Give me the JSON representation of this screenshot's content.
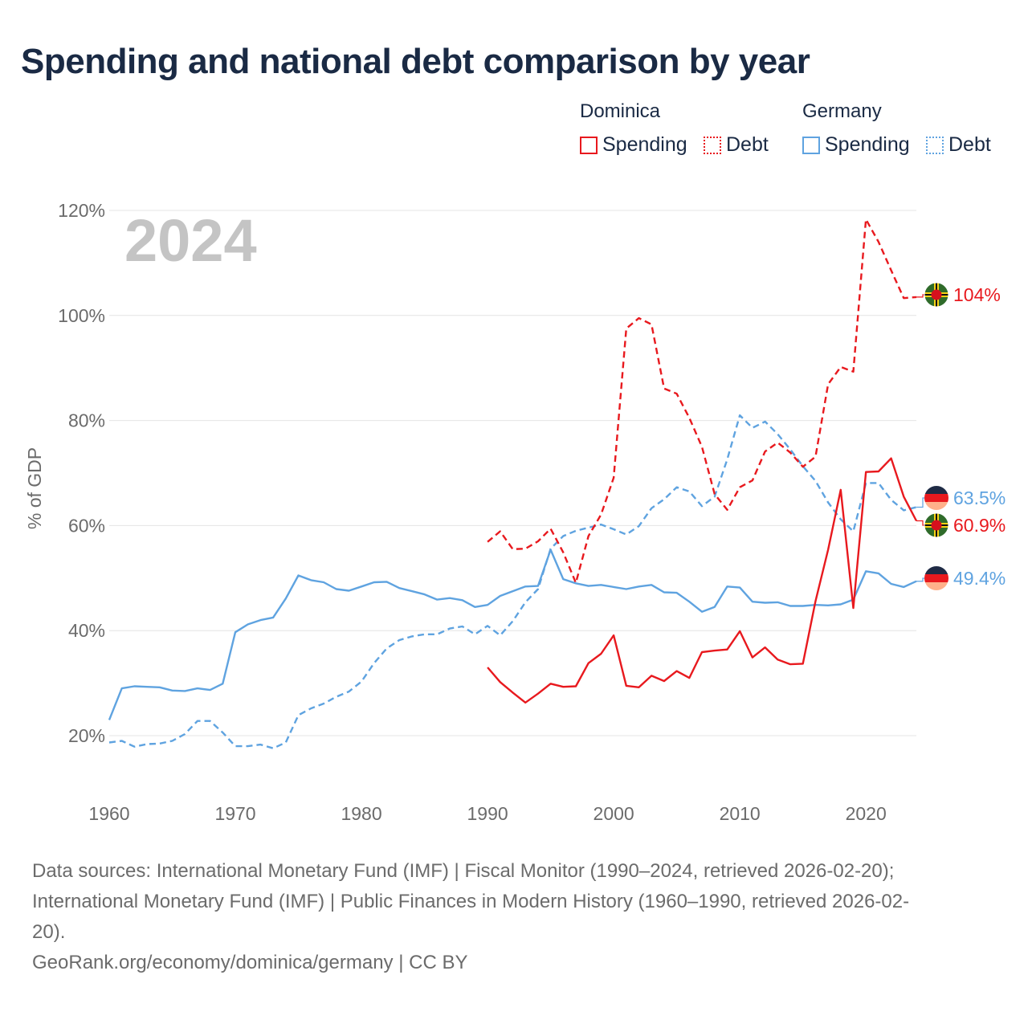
{
  "title": "Spending and national debt comparison by year",
  "legend": {
    "groups": [
      {
        "name": "Dominica",
        "color": "#e8191e",
        "items": [
          {
            "label": "Spending",
            "style": "solid"
          },
          {
            "label": "Debt",
            "style": "dotted"
          }
        ]
      },
      {
        "name": "Germany",
        "color": "#5fa3e0",
        "items": [
          {
            "label": "Spending",
            "style": "solid"
          },
          {
            "label": "Debt",
            "style": "dotted"
          }
        ]
      }
    ]
  },
  "chart_data": {
    "type": "line",
    "year_label": "2024",
    "ylabel": "% of GDP",
    "xlim": [
      1960,
      2024
    ],
    "ylim": [
      10,
      120
    ],
    "x_ticks": [
      "1960",
      "1970",
      "1980",
      "1990",
      "2000",
      "2010",
      "2020"
    ],
    "y_ticks": [
      "20%",
      "40%",
      "60%",
      "80%",
      "100%",
      "120%"
    ],
    "series": [
      {
        "name": "Germany Spending",
        "country": "Germany",
        "color": "#5fa3e0",
        "dash": false,
        "end_label": "49.4%",
        "end_value": 49.4,
        "x": [
          1960,
          1961,
          1962,
          1963,
          1964,
          1965,
          1966,
          1967,
          1968,
          1969,
          1970,
          1971,
          1972,
          1973,
          1974,
          1975,
          1976,
          1977,
          1978,
          1979,
          1980,
          1981,
          1982,
          1983,
          1984,
          1985,
          1986,
          1987,
          1988,
          1989,
          1990,
          1991,
          1992,
          1993,
          1994,
          1995,
          1996,
          1997,
          1998,
          1999,
          2000,
          2001,
          2002,
          2003,
          2004,
          2005,
          2006,
          2007,
          2008,
          2009,
          2010,
          2011,
          2012,
          2013,
          2014,
          2015,
          2016,
          2017,
          2018,
          2019,
          2020,
          2021,
          2022,
          2023,
          2024
        ],
        "values": [
          23.0,
          29.0,
          29.4,
          29.3,
          29.2,
          28.6,
          28.5,
          29.0,
          28.7,
          29.9,
          39.7,
          41.2,
          42.0,
          42.5,
          46.1,
          50.5,
          49.6,
          49.2,
          47.9,
          47.6,
          48.4,
          49.2,
          49.3,
          48.1,
          47.5,
          46.9,
          45.9,
          46.2,
          45.8,
          44.5,
          44.9,
          46.6,
          47.5,
          48.4,
          48.5,
          55.4,
          49.8,
          49.0,
          48.5,
          48.7,
          48.3,
          47.9,
          48.4,
          48.7,
          47.3,
          47.2,
          45.5,
          43.6,
          44.5,
          48.4,
          48.2,
          45.5,
          45.3,
          45.4,
          44.7,
          44.7,
          44.9,
          44.8,
          45.0,
          45.9,
          51.3,
          50.9,
          48.9,
          48.3,
          49.4
        ]
      },
      {
        "name": "Germany Debt",
        "country": "Germany",
        "color": "#5fa3e0",
        "dash": true,
        "end_label": "63.5%",
        "end_value": 63.5,
        "x": [
          1960,
          1961,
          1962,
          1963,
          1964,
          1965,
          1966,
          1967,
          1968,
          1969,
          1970,
          1971,
          1972,
          1973,
          1974,
          1975,
          1976,
          1977,
          1978,
          1979,
          1980,
          1981,
          1982,
          1983,
          1984,
          1985,
          1986,
          1987,
          1988,
          1989,
          1990,
          1991,
          1992,
          1993,
          1994,
          1995,
          1996,
          1997,
          1998,
          1999,
          2000,
          2001,
          2002,
          2003,
          2004,
          2005,
          2006,
          2007,
          2008,
          2009,
          2010,
          2011,
          2012,
          2013,
          2014,
          2015,
          2016,
          2017,
          2018,
          2019,
          2020,
          2021,
          2022,
          2023,
          2024
        ],
        "values": [
          18.7,
          19.0,
          17.9,
          18.4,
          18.5,
          19.0,
          20.3,
          22.8,
          22.8,
          20.6,
          18.0,
          18.0,
          18.3,
          17.6,
          18.7,
          23.9,
          25.2,
          26.1,
          27.4,
          28.4,
          30.3,
          33.8,
          36.6,
          38.2,
          38.9,
          39.3,
          39.3,
          40.4,
          40.8,
          39.3,
          40.9,
          39.1,
          41.8,
          45.4,
          47.9,
          55.6,
          58.0,
          59.0,
          59.6,
          60.2,
          59.3,
          58.3,
          59.9,
          63.3,
          65.0,
          67.3,
          66.5,
          63.7,
          65.5,
          72.6,
          81.0,
          78.6,
          79.8,
          77.4,
          74.5,
          71.3,
          68.5,
          64.4,
          61.2,
          58.9,
          68.1,
          68.1,
          64.9,
          62.9,
          63.5
        ]
      },
      {
        "name": "Dominica Spending",
        "country": "Dominica",
        "color": "#e8191e",
        "dash": false,
        "end_label": "60.9%",
        "end_value": 60.9,
        "x": [
          1990,
          1991,
          1992,
          1993,
          1994,
          1995,
          1996,
          1997,
          1998,
          1999,
          2000,
          2001,
          2002,
          2003,
          2004,
          2005,
          2006,
          2007,
          2008,
          2009,
          2010,
          2011,
          2012,
          2013,
          2014,
          2015,
          2016,
          2017,
          2018,
          2019,
          2020,
          2021,
          2022,
          2023,
          2024
        ],
        "values": [
          33.0,
          30.2,
          28.2,
          26.3,
          28.0,
          29.9,
          29.3,
          29.4,
          33.8,
          35.6,
          39.1,
          29.5,
          29.2,
          31.4,
          30.4,
          32.3,
          31.0,
          35.9,
          36.2,
          36.4,
          39.9,
          34.9,
          36.8,
          34.5,
          33.6,
          33.7,
          45.6,
          55.4,
          66.8,
          44.3,
          70.2,
          70.3,
          72.8,
          65.5,
          60.9
        ]
      },
      {
        "name": "Dominica Debt",
        "country": "Dominica",
        "color": "#e8191e",
        "dash": true,
        "end_label": "104%",
        "end_value": 103.5,
        "x": [
          1990,
          1991,
          1992,
          1993,
          1994,
          1995,
          1996,
          1997,
          1998,
          1999,
          2000,
          2001,
          2002,
          2003,
          2004,
          2005,
          2006,
          2007,
          2008,
          2009,
          2010,
          2011,
          2012,
          2013,
          2014,
          2015,
          2016,
          2017,
          2018,
          2019,
          2020,
          2021,
          2022,
          2023,
          2024
        ],
        "values": [
          56.9,
          58.9,
          55.5,
          55.6,
          57.0,
          59.4,
          54.9,
          49.1,
          58.0,
          62.1,
          69.1,
          97.5,
          99.5,
          98.3,
          86.1,
          85.1,
          80.5,
          75.0,
          66.0,
          63.0,
          67.3,
          68.6,
          74.1,
          75.8,
          73.9,
          71.2,
          73.1,
          86.9,
          90.2,
          89.3,
          118.3,
          114.0,
          108.6,
          103.3,
          103.5
        ]
      }
    ]
  },
  "footer": {
    "sources_line1": "Data sources: International Monetary Fund (IMF) | Fiscal Monitor (1990–2024, retrieved 2026-02-20);",
    "sources_line2": "International Monetary Fund (IMF) | Public Finances in Modern History (1960–1990, retrieved 2026-02-",
    "sources_line3": "20).",
    "attribution": "GeoRank.org/economy/dominica/germany | CC BY"
  }
}
